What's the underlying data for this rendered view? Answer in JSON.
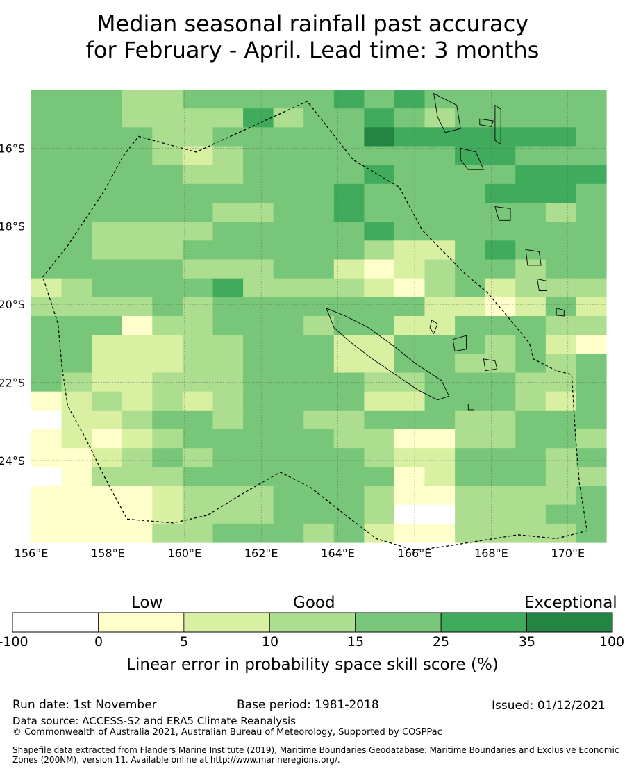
{
  "title": {
    "line1": "Median seasonal rainfall past accuracy",
    "line2": "for February - April. Lead time: 3 months"
  },
  "map": {
    "lon_range": [
      156,
      171
    ],
    "lat_range": [
      -26.1,
      -14.5
    ],
    "lat_ticks": [
      {
        "value": -16,
        "label": "16°S"
      },
      {
        "value": -18,
        "label": "18°S"
      },
      {
        "value": -20,
        "label": "20°S"
      },
      {
        "value": -22,
        "label": "22°S"
      },
      {
        "value": -24,
        "label": "24°S"
      }
    ],
    "lon_ticks": [
      {
        "value": 156,
        "label": "156°E"
      },
      {
        "value": 158,
        "label": "158°E"
      },
      {
        "value": 160,
        "label": "160°E"
      },
      {
        "value": 162,
        "label": "162°E"
      },
      {
        "value": 164,
        "label": "164°E"
      },
      {
        "value": 166,
        "label": "166°E"
      },
      {
        "value": 168,
        "label": "168°E"
      },
      {
        "value": 170,
        "label": "170°E"
      }
    ],
    "grid_lon_start": 156,
    "grid_lat_top": -14.5,
    "grid_cell_deg": 0.833,
    "grid_class_codes": [
      "4443344444545444444",
      "4443333534454344444",
      "4444334444465555554",
      "4444323444444455444",
      "4444433444454444555",
      "4444444444544445554",
      "4444443344544444434",
      "4433334444454444444",
      "4433344444432245444",
      "4444433344212344344",
      "2344445333321342333",
      "3333434444444221242",
      "4441334443442244433",
      "4422233444224443421",
      "4422233444224433434",
      "4322333444433444334",
      "1232323444422444324",
      "0223443443344433444",
      "1212344444331133443",
      "1123434444432244434",
      "0133344444441244433",
      "1111233344431133334",
      "1111233344430033344",
      "1111334443421133334"
    ],
    "class_colors": [
      "#ffffff",
      "#ffffcc",
      "#d9f0a3",
      "#addd8e",
      "#78c679",
      "#41ab5d",
      "#238443"
    ],
    "eez_boundary": [
      [
        156.3,
        -19.3
      ],
      [
        156.95,
        -18.5
      ],
      [
        157.9,
        -17.1
      ],
      [
        158.4,
        -16.2
      ],
      [
        158.8,
        -15.7
      ],
      [
        160.3,
        -16.1
      ],
      [
        163.2,
        -14.8
      ],
      [
        164.4,
        -16.3
      ],
      [
        165.6,
        -17.0
      ],
      [
        166.2,
        -18.1
      ],
      [
        167.3,
        -19.2
      ],
      [
        167.9,
        -19.7
      ],
      [
        168.5,
        -20.4
      ],
      [
        169.0,
        -21.0
      ],
      [
        169.1,
        -21.4
      ],
      [
        169.7,
        -21.7
      ],
      [
        170.1,
        -21.8
      ],
      [
        170.2,
        -23.4
      ],
      [
        170.3,
        -24.6
      ],
      [
        170.5,
        -25.8
      ],
      [
        169.7,
        -26.0
      ],
      [
        168.7,
        -25.9
      ],
      [
        166.8,
        -26.2
      ],
      [
        166.0,
        -26.3
      ],
      [
        165.0,
        -26.0
      ],
      [
        164.2,
        -25.4
      ],
      [
        163.3,
        -24.7
      ],
      [
        162.5,
        -24.3
      ],
      [
        161.6,
        -24.8
      ],
      [
        160.6,
        -25.4
      ],
      [
        159.7,
        -25.6
      ],
      [
        158.5,
        -25.5
      ],
      [
        157.9,
        -24.4
      ],
      [
        157.4,
        -23.4
      ],
      [
        156.95,
        -22.6
      ],
      [
        156.8,
        -21.6
      ],
      [
        156.7,
        -20.5
      ],
      [
        156.3,
        -19.3
      ]
    ],
    "land_outlines": [
      {
        "name": "new-caledonia",
        "points": [
          [
            163.7,
            -20.1
          ],
          [
            164.2,
            -20.3
          ],
          [
            164.8,
            -20.6
          ],
          [
            165.5,
            -21.1
          ],
          [
            166.0,
            -21.5
          ],
          [
            166.7,
            -21.95
          ],
          [
            166.9,
            -22.35
          ],
          [
            166.6,
            -22.45
          ],
          [
            166.1,
            -22.2
          ],
          [
            165.5,
            -21.8
          ],
          [
            164.9,
            -21.4
          ],
          [
            164.3,
            -20.95
          ],
          [
            163.9,
            -20.6
          ]
        ]
      },
      {
        "name": "lifou-island",
        "points": [
          [
            167.0,
            -20.9
          ],
          [
            167.35,
            -20.8
          ],
          [
            167.35,
            -21.15
          ],
          [
            167.05,
            -21.2
          ]
        ]
      },
      {
        "name": "mare-island",
        "points": [
          [
            167.8,
            -21.4
          ],
          [
            168.1,
            -21.45
          ],
          [
            168.15,
            -21.65
          ],
          [
            167.85,
            -21.7
          ]
        ]
      },
      {
        "name": "ouvea-island",
        "points": [
          [
            166.45,
            -20.4
          ],
          [
            166.6,
            -20.5
          ],
          [
            166.5,
            -20.75
          ],
          [
            166.4,
            -20.6
          ]
        ]
      },
      {
        "name": "isle-of-pines",
        "points": [
          [
            167.4,
            -22.55
          ],
          [
            167.55,
            -22.55
          ],
          [
            167.55,
            -22.7
          ],
          [
            167.4,
            -22.7
          ]
        ]
      },
      {
        "name": "espiritu-santo",
        "points": [
          [
            166.5,
            -14.6
          ],
          [
            167.1,
            -14.9
          ],
          [
            167.2,
            -15.5
          ],
          [
            166.8,
            -15.6
          ],
          [
            166.6,
            -15.2
          ]
        ]
      },
      {
        "name": "malekula",
        "points": [
          [
            167.2,
            -16.0
          ],
          [
            167.6,
            -16.1
          ],
          [
            167.8,
            -16.55
          ],
          [
            167.4,
            -16.55
          ],
          [
            167.2,
            -16.3
          ]
        ]
      },
      {
        "name": "efate",
        "points": [
          [
            168.1,
            -17.5
          ],
          [
            168.5,
            -17.55
          ],
          [
            168.5,
            -17.85
          ],
          [
            168.2,
            -17.85
          ]
        ]
      },
      {
        "name": "erromango",
        "points": [
          [
            168.9,
            -18.6
          ],
          [
            169.25,
            -18.65
          ],
          [
            169.3,
            -19.0
          ],
          [
            168.95,
            -19.0
          ]
        ]
      },
      {
        "name": "tanna",
        "points": [
          [
            169.2,
            -19.35
          ],
          [
            169.45,
            -19.4
          ],
          [
            169.45,
            -19.65
          ],
          [
            169.25,
            -19.65
          ]
        ]
      },
      {
        "name": "maewo-pentecost",
        "points": [
          [
            168.1,
            -14.9
          ],
          [
            168.25,
            -15.0
          ],
          [
            168.25,
            -15.9
          ],
          [
            168.1,
            -15.8
          ]
        ]
      },
      {
        "name": "ambae",
        "points": [
          [
            167.7,
            -15.25
          ],
          [
            168.05,
            -15.3
          ],
          [
            168.0,
            -15.45
          ],
          [
            167.7,
            -15.4
          ]
        ]
      },
      {
        "name": "aneityum",
        "points": [
          [
            169.7,
            -20.1
          ],
          [
            169.9,
            -20.15
          ],
          [
            169.9,
            -20.3
          ],
          [
            169.7,
            -20.28
          ]
        ]
      }
    ]
  },
  "colorbar": {
    "categories": [
      "Low",
      "Good",
      "Exceptional"
    ],
    "tick_labels": [
      "-100",
      "0",
      "5",
      "10",
      "15",
      "25",
      "35",
      "100"
    ],
    "colors": [
      "#ffffff",
      "#ffffcc",
      "#d9f0a3",
      "#addd8e",
      "#78c679",
      "#41ab5d",
      "#238443"
    ],
    "label": "Linear error in probability space skill score (%)"
  },
  "footer": {
    "run_date": "Run date: 1st November",
    "base_period": "Base period: 1981-2018",
    "issued": "Issued: 01/12/2021",
    "data_source": "Data source: ACCESS-S2 and ERA5 Climate Reanalysis",
    "copyright": "© Commonwealth of Australia 2021, Australian Bureau of Meteorology, Supported by COSPPac",
    "shapefile_line1": "Shapefile data extracted from Flanders Marine Institute (2019), Maritime Boundaries Geodatabase: Maritime Boundaries and Exclusive Economic",
    "shapefile_line2": "Zones (200NM), version 11. Available online at http://www.marineregions.org/."
  }
}
